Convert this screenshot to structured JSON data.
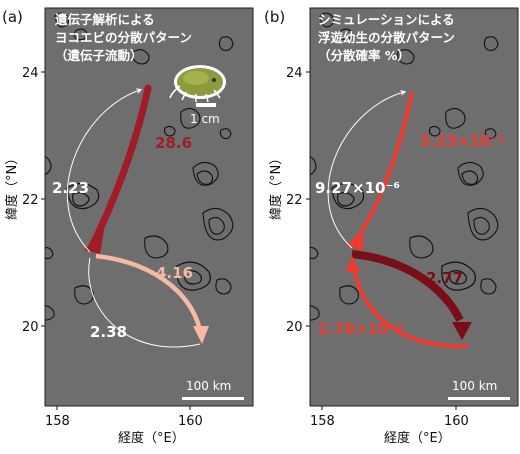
{
  "panel_a": {
    "label": "(a)",
    "title_lines": [
      "遺伝子解析による",
      "ヨコエビの分散パターン",
      "（遺伝子流動）"
    ],
    "flows": [
      {
        "value": "28.6",
        "color": "#a01c26"
      },
      {
        "value": "2.23",
        "color": "#ffffff"
      },
      {
        "value": "4.16",
        "color": "#f6b9a3"
      },
      {
        "value": "2.38",
        "color": "#ffffff"
      }
    ],
    "inset_scale": "1 cm",
    "scale_bar": "100 km",
    "y_ticks": [
      "24",
      "22",
      "20"
    ],
    "x_ticks": [
      "158",
      "160"
    ],
    "y_axis_title": "緯度（°N）",
    "x_axis_title": "経度（°E）"
  },
  "panel_b": {
    "label": "(b)",
    "title_lines": [
      "シミュレーションによる",
      "浮遊幼生の分散パターン",
      "（分散確率 %）"
    ],
    "flows": [
      {
        "value": "5.23×10⁻²",
        "color": "#ee3b2e"
      },
      {
        "value": "9.27×10⁻⁶",
        "color": "#ffffff"
      },
      {
        "value": "2.77",
        "color": "#7a0e16"
      },
      {
        "value": "2.78×10⁻²",
        "color": "#ee3b2e"
      }
    ],
    "scale_bar": "100 km",
    "y_ticks": [
      "24",
      "22",
      "20"
    ],
    "x_ticks": [
      "158",
      "160"
    ],
    "y_axis_title": "緯度（°N）",
    "x_axis_title": "経度（°E）"
  },
  "colors": {
    "map_background": "#6e6e6e",
    "contour": "#111111"
  }
}
